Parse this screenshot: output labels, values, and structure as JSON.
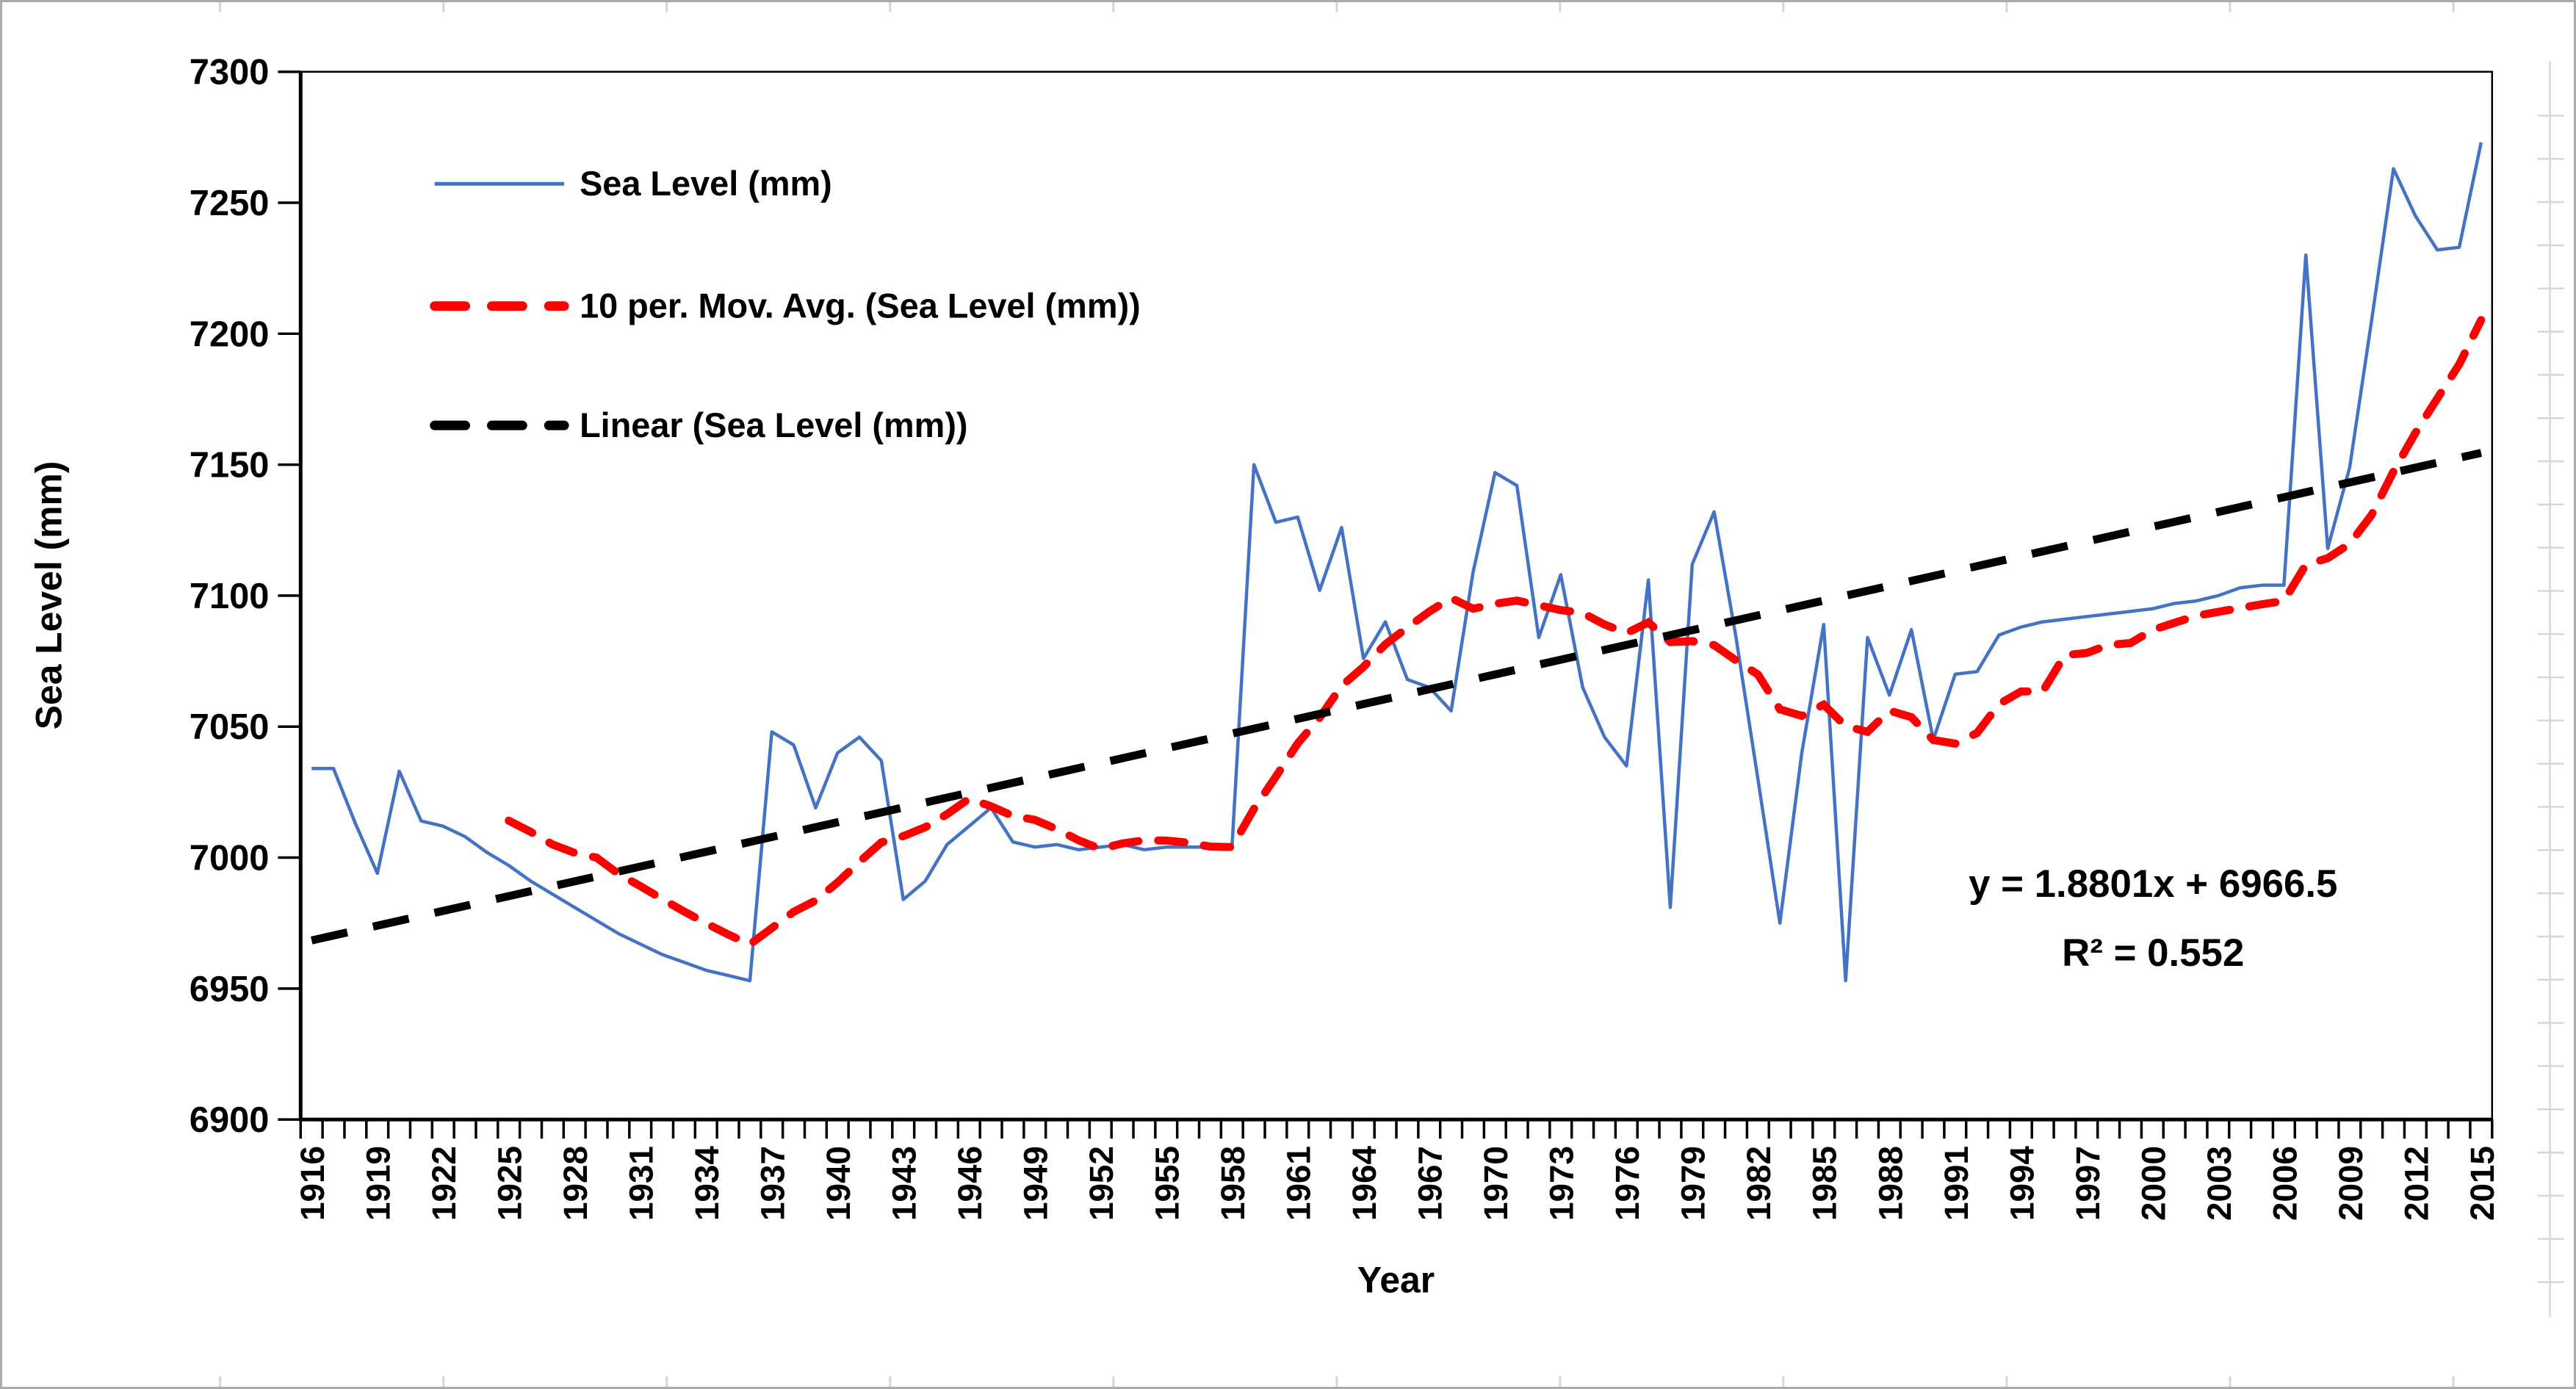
{
  "chart_data": {
    "type": "line",
    "title": "",
    "xlabel": "Year",
    "ylabel": "Sea Level (mm)",
    "ylim": [
      6900,
      7300
    ],
    "ytick_step": 50,
    "x_start": 1916,
    "x_end": 2015,
    "x_label_interval": 3,
    "grid": false,
    "legend_position": "top-left-inside",
    "categories": [
      1916,
      1917,
      1918,
      1919,
      1920,
      1921,
      1922,
      1923,
      1924,
      1925,
      1926,
      1927,
      1928,
      1929,
      1930,
      1931,
      1932,
      1933,
      1934,
      1935,
      1936,
      1937,
      1938,
      1939,
      1940,
      1941,
      1942,
      1943,
      1944,
      1945,
      1946,
      1947,
      1948,
      1949,
      1950,
      1951,
      1952,
      1953,
      1954,
      1955,
      1956,
      1957,
      1958,
      1959,
      1960,
      1961,
      1962,
      1963,
      1964,
      1965,
      1966,
      1967,
      1968,
      1969,
      1970,
      1971,
      1972,
      1973,
      1974,
      1975,
      1976,
      1977,
      1978,
      1979,
      1980,
      1981,
      1982,
      1983,
      1984,
      1985,
      1986,
      1987,
      1988,
      1989,
      1990,
      1991,
      1992,
      1993,
      1994,
      1995,
      1996,
      1997,
      1998,
      1999,
      2000,
      2001,
      2002,
      2003,
      2004,
      2005,
      2006,
      2007,
      2008,
      2009,
      2010,
      2011,
      2012,
      2013,
      2014,
      2015
    ],
    "series": [
      {
        "name": "Sea Level (mm)",
        "color": "#4472C4",
        "style": "solid",
        "values": [
          7034,
          7034,
          7013,
          6994,
          7033,
          7014,
          7012,
          7008,
          7002,
          6997,
          6991,
          6986,
          6981,
          6976,
          6971,
          6967,
          6963,
          6960,
          6957,
          6955,
          6953,
          7048,
          7043,
          7019,
          7040,
          7046,
          7037,
          6984,
          6991,
          7005,
          7012,
          7019,
          7006,
          7004,
          7005,
          7003,
          7004,
          7005,
          7003,
          7004,
          7004,
          7004,
          7004,
          7150,
          7128,
          7130,
          7102,
          7126,
          7076,
          7090,
          7068,
          7065,
          7056,
          7109,
          7147,
          7142,
          7084,
          7108,
          7065,
          7046,
          7035,
          7106,
          6981,
          7112,
          7132,
          7084,
          7030,
          6975,
          7040,
          7089,
          6953,
          7084,
          7062,
          7087,
          7045,
          7070,
          7071,
          7085,
          7088,
          7090,
          7091,
          7092,
          7093,
          7094,
          7095,
          7097,
          7098,
          7100,
          7103,
          7104,
          7104,
          7230,
          7118,
          7149,
          7205,
          7263,
          7245,
          7232,
          7233,
          7273
        ]
      },
      {
        "name": "10 per. Mov. Avg. (Sea Level (mm))",
        "color": "#FF0000",
        "style": "dashed",
        "derived": "moving_average",
        "period": 10
      },
      {
        "name": "Linear (Sea Level (mm))",
        "color": "#000000",
        "style": "dashed",
        "derived": "linear",
        "equation": {
          "slope": 1.8801,
          "intercept": 6966.5
        }
      }
    ],
    "annotations": [
      {
        "id": "trend-equation",
        "text": "y = 1.8801x + 6966.5"
      },
      {
        "id": "r-squared",
        "text": "R² = 0.552"
      }
    ]
  },
  "legend": {
    "items": [
      {
        "label": "Sea Level (mm)",
        "color": "#4472C4",
        "style": "solid"
      },
      {
        "label": "10 per. Mov. Avg. (Sea Level (mm))",
        "color": "#FF0000",
        "style": "dashed"
      },
      {
        "label": "Linear (Sea Level (mm))",
        "color": "#000000",
        "style": "dashed"
      }
    ]
  },
  "axes": {
    "y_tick_labels": [
      "6900",
      "6950",
      "7000",
      "7050",
      "7100",
      "7150",
      "7200",
      "7250",
      "7300"
    ],
    "x_tick_labels": [
      "1916",
      "1919",
      "1922",
      "1925",
      "1928",
      "1931",
      "1934",
      "1937",
      "1940",
      "1943",
      "1946",
      "1949",
      "1952",
      "1955",
      "1958",
      "1961",
      "1964",
      "1967",
      "1970",
      "1973",
      "1976",
      "1979",
      "1982",
      "1985",
      "1988",
      "1991",
      "1994",
      "1997",
      "2000",
      "2003",
      "2006",
      "2009",
      "2012",
      "2015"
    ]
  },
  "colors": {
    "sea_level_line": "#4472C4",
    "moving_average_line": "#FF0000",
    "trend_line": "#000000",
    "plot_border": "#000000",
    "figure_border": "#ababab",
    "worksheet_gridline": "#d6d6d6"
  }
}
